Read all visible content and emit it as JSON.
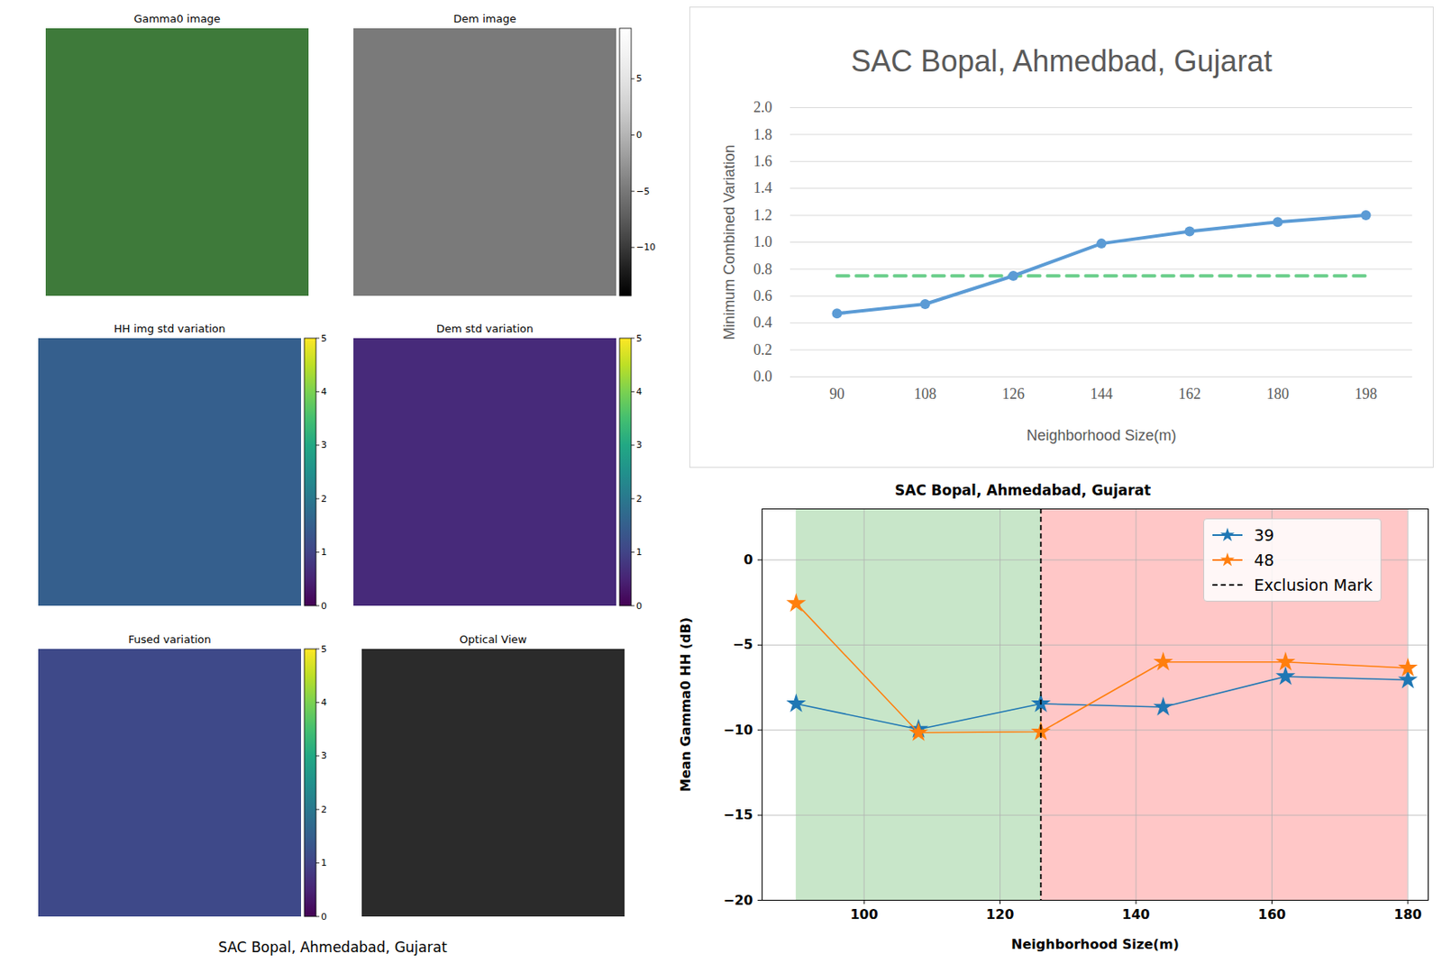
{
  "caption": "SAC Bopal, Ahmedabad, Gujarat",
  "chart_data": [
    {
      "type": "image",
      "title": "Gamma0 image"
    },
    {
      "type": "image",
      "title": "Dem image",
      "color": "gray",
      "colorbar": {
        "range": [
          -14.3,
          9.5
        ],
        "ticks": [
          -10,
          -5,
          0,
          5
        ]
      }
    },
    {
      "type": "image",
      "title": "HH img std variation",
      "color": "viridis",
      "colorbar": {
        "range": [
          0,
          5
        ],
        "ticks": [
          0,
          1,
          2,
          3,
          4,
          5
        ]
      }
    },
    {
      "type": "image",
      "title": "Dem std variation",
      "color": "viridis",
      "colorbar": {
        "range": [
          0,
          5
        ],
        "ticks": [
          0,
          1,
          2,
          3,
          4,
          5
        ]
      }
    },
    {
      "type": "image",
      "title": "Fused variation",
      "color": "viridis",
      "colorbar": {
        "range": [
          0,
          5
        ],
        "ticks": [
          0,
          1,
          2,
          3,
          4,
          5
        ]
      }
    },
    {
      "type": "image",
      "title": "Optical View"
    },
    {
      "type": "line",
      "title": "SAC Bopal, Ahmedbad, Gujarat",
      "x_label": "Neighborhood Size(m)",
      "y_label": "Minimum Combined Variation",
      "categories": [
        90,
        108,
        126,
        144,
        162,
        180,
        198
      ],
      "series": [
        {
          "color": "#5b9bd5",
          "marker": "circle",
          "values": [
            0.47,
            0.54,
            0.75,
            0.99,
            1.08,
            1.15,
            1.2
          ]
        },
        {
          "color": "#6fd08f",
          "line_style": "dashed",
          "values": [
            0.75,
            0.75,
            0.75,
            0.75,
            0.75,
            0.75,
            0.75
          ]
        }
      ],
      "ylim": [
        0,
        2
      ],
      "yticks": [
        0,
        0.2,
        0.4,
        0.6,
        0.8,
        1,
        1.2,
        1.4,
        1.6,
        1.8,
        2
      ],
      "grid": true
    },
    {
      "type": "line",
      "title": "SAC Bopal, Ahmedabad, Gujarat",
      "x_label": "Neighborhood Size(m)",
      "y_label": "Mean Gamma0 HH (dB)",
      "x": [
        90,
        108,
        126,
        144,
        162,
        180
      ],
      "series": [
        {
          "name": "39",
          "color": "#1f77b4",
          "marker": "star",
          "values": [
            -8.45,
            -9.95,
            -8.45,
            -8.65,
            -6.85,
            -7.05
          ]
        },
        {
          "name": "48",
          "color": "#ff7f0e",
          "marker": "star",
          "values": [
            -2.55,
            -10.15,
            -10.1,
            -6.0,
            -6.0,
            -6.35
          ]
        }
      ],
      "vline": {
        "name": "Exclusion Mark",
        "x": 126,
        "color": "#000000",
        "line_style": "dashed"
      },
      "regions": [
        {
          "from": 90,
          "to": 126,
          "color": "#c8e6c9"
        },
        {
          "from": 126,
          "to": 180,
          "color": "#ffc7c7"
        }
      ],
      "xlim": [
        85,
        183
      ],
      "xticks": [
        100,
        120,
        140,
        160,
        180
      ],
      "ylim": [
        -20,
        3
      ],
      "yticks": [
        -20,
        -15,
        -10,
        -5,
        0
      ],
      "grid": true,
      "legend": "top-right"
    }
  ]
}
